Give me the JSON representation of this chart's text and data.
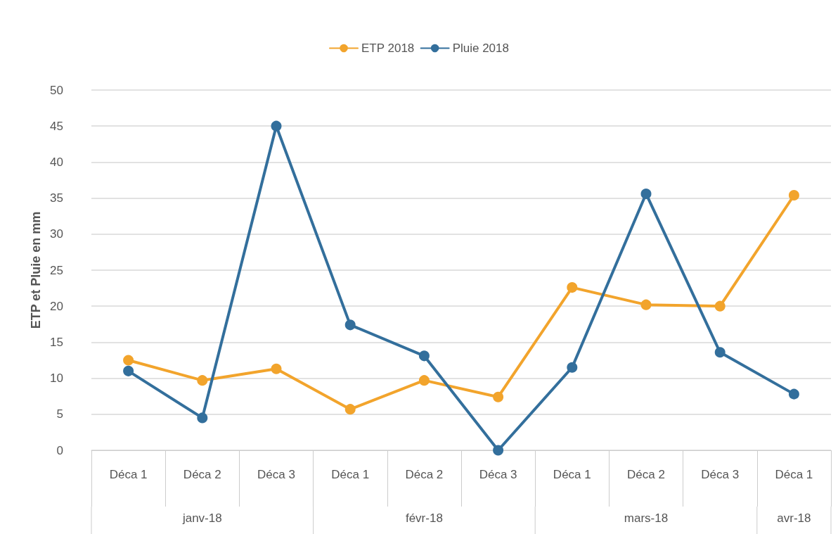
{
  "chart_data": {
    "type": "line",
    "ylabel": "ETP et Pluie en mm",
    "categories": [
      "Déca 1",
      "Déca 2",
      "Déca 3",
      "Déca 1",
      "Déca 2",
      "Déca 3",
      "Déca 1",
      "Déca 2",
      "Déca 3",
      "Déca 1"
    ],
    "annotations": [
      "janv-18",
      "févr-18",
      "mars-18",
      "avr-18"
    ],
    "series": [
      {
        "name": "ETP 2018",
        "color": "#f2a42c",
        "values": [
          12.5,
          9.7,
          11.3,
          5.7,
          9.7,
          7.4,
          22.6,
          20.2,
          20.0,
          35.4
        ]
      },
      {
        "name": "Pluie 2018",
        "color": "#336f9c",
        "values": [
          11.0,
          4.5,
          45,
          17.4,
          13.1,
          0,
          11.5,
          35.6,
          13.6,
          7.8
        ]
      }
    ],
    "ylim": [
      0,
      50
    ],
    "yticks": [
      0,
      5,
      10,
      15,
      20,
      25,
      30,
      35,
      40,
      45,
      50
    ],
    "grid": "y",
    "legend": "top",
    "marker": "circle",
    "line_style": "solid"
  }
}
